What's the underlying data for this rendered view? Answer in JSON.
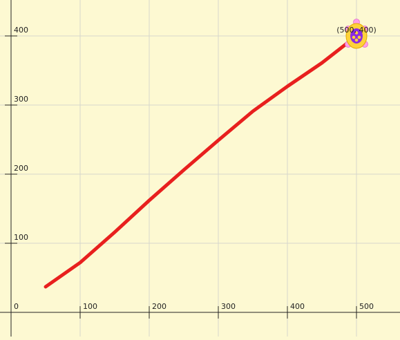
{
  "chart_data": {
    "type": "line",
    "title": "",
    "xlabel": "",
    "ylabel": "",
    "origin_label": "0",
    "xlim": [
      -16,
      563
    ],
    "ylim": [
      -35,
      452
    ],
    "x_ticks": [
      100,
      200,
      300,
      400,
      500
    ],
    "y_ticks": [
      100,
      200,
      300,
      400
    ],
    "grid": true,
    "series": [
      {
        "color": "#e8201e",
        "x": [
          50,
          100,
          150,
          200,
          250,
          300,
          350,
          400,
          450,
          500
        ],
        "y": [
          37,
          72,
          116,
          162,
          206,
          249,
          291,
          327,
          361,
          400
        ]
      }
    ],
    "turtle": {
      "x": 500,
      "y": 400,
      "label": "(500, 400)",
      "shell_color": "#ffd23a",
      "body_color": "#ff9ee8",
      "pattern_color": "#8a2be2",
      "icon": "turtle-icon"
    }
  },
  "colors": {
    "background": "#fdf9d2",
    "grid": "#d6d6cc",
    "axis": "#222222"
  }
}
